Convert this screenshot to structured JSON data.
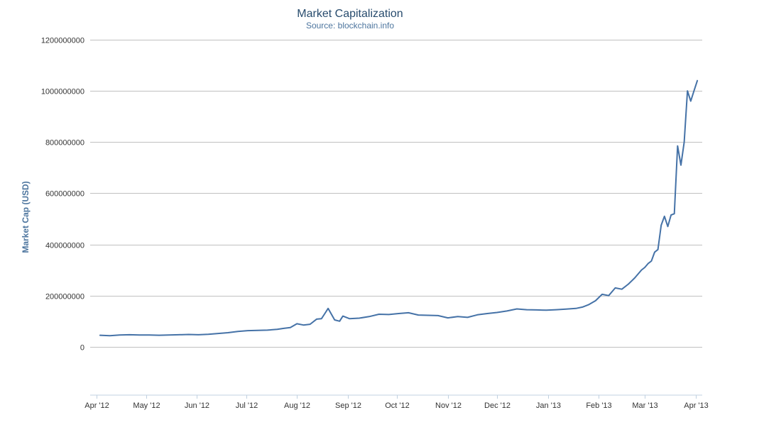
{
  "chart_data": {
    "type": "line",
    "title": "Market Capitalization",
    "subtitle": "Source: blockchain.info",
    "xlabel": "",
    "ylabel": "Market Cap (USD)",
    "ylim": [
      -200000000,
      1200000000
    ],
    "xlim": [
      "2012-03-28",
      "2013-04-05"
    ],
    "grid": true,
    "line_color": "#4572a7",
    "y_ticks": [
      {
        "value": 0,
        "label": "0"
      },
      {
        "value": 200000000,
        "label": "200000000"
      },
      {
        "value": 400000000,
        "label": "400000000"
      },
      {
        "value": 600000000,
        "label": "600000000"
      },
      {
        "value": 800000000,
        "label": "800000000"
      },
      {
        "value": 1000000000,
        "label": "1000000000"
      },
      {
        "value": 1200000000,
        "label": "1200000000"
      }
    ],
    "x_ticks": [
      {
        "date": "2012-04-01",
        "label": "Apr '12"
      },
      {
        "date": "2012-05-01",
        "label": "May '12"
      },
      {
        "date": "2012-06-01",
        "label": "Jun '12"
      },
      {
        "date": "2012-07-01",
        "label": "Jul '12"
      },
      {
        "date": "2012-08-01",
        "label": "Aug '12"
      },
      {
        "date": "2012-09-01",
        "label": "Sep '12"
      },
      {
        "date": "2012-10-01",
        "label": "Oct '12"
      },
      {
        "date": "2012-11-01",
        "label": "Nov '12"
      },
      {
        "date": "2012-12-01",
        "label": "Dec '12"
      },
      {
        "date": "2013-01-01",
        "label": "Jan '13"
      },
      {
        "date": "2013-02-01",
        "label": "Feb '13"
      },
      {
        "date": "2013-03-01",
        "label": "Mar '13"
      },
      {
        "date": "2013-04-01",
        "label": "Apr '13"
      }
    ],
    "series": [
      {
        "name": "",
        "x": [
          "2012-04-03",
          "2012-04-09",
          "2012-04-15",
          "2012-04-21",
          "2012-04-27",
          "2012-05-03",
          "2012-05-09",
          "2012-05-15",
          "2012-05-21",
          "2012-05-27",
          "2012-06-02",
          "2012-06-08",
          "2012-06-14",
          "2012-06-20",
          "2012-06-26",
          "2012-07-02",
          "2012-07-08",
          "2012-07-14",
          "2012-07-20",
          "2012-07-24",
          "2012-07-28",
          "2012-08-01",
          "2012-08-05",
          "2012-08-09",
          "2012-08-13",
          "2012-08-16",
          "2012-08-18",
          "2012-08-20",
          "2012-08-24",
          "2012-08-27",
          "2012-08-29",
          "2012-09-02",
          "2012-09-08",
          "2012-09-14",
          "2012-09-20",
          "2012-09-26",
          "2012-10-02",
          "2012-10-08",
          "2012-10-14",
          "2012-10-20",
          "2012-10-26",
          "2012-11-01",
          "2012-11-07",
          "2012-11-13",
          "2012-11-19",
          "2012-11-25",
          "2012-12-01",
          "2012-12-07",
          "2012-12-13",
          "2012-12-19",
          "2012-12-25",
          "2012-12-31",
          "2013-01-06",
          "2013-01-12",
          "2013-01-18",
          "2013-01-22",
          "2013-01-26",
          "2013-01-30",
          "2013-02-03",
          "2013-02-07",
          "2013-02-11",
          "2013-02-15",
          "2013-02-19",
          "2013-02-23",
          "2013-02-27",
          "2013-03-01",
          "2013-03-03",
          "2013-03-05",
          "2013-03-07",
          "2013-03-09",
          "2013-03-11",
          "2013-03-13",
          "2013-03-15",
          "2013-03-17",
          "2013-03-19",
          "2013-03-21",
          "2013-03-23",
          "2013-03-25",
          "2013-03-27",
          "2013-03-29",
          "2013-03-31",
          "2013-04-02"
        ],
        "y": [
          45000000,
          43000000,
          46000000,
          47000000,
          46000000,
          46000000,
          45000000,
          46000000,
          47000000,
          48000000,
          47000000,
          49000000,
          52000000,
          55000000,
          60000000,
          63000000,
          64000000,
          65000000,
          68000000,
          72000000,
          75000000,
          90000000,
          85000000,
          88000000,
          108000000,
          110000000,
          130000000,
          150000000,
          105000000,
          100000000,
          120000000,
          110000000,
          112000000,
          118000000,
          127000000,
          126000000,
          130000000,
          133000000,
          124000000,
          123000000,
          122000000,
          113000000,
          118000000,
          115000000,
          125000000,
          130000000,
          134000000,
          140000000,
          148000000,
          145000000,
          144000000,
          143000000,
          145000000,
          147000000,
          150000000,
          155000000,
          165000000,
          180000000,
          205000000,
          200000000,
          230000000,
          225000000,
          245000000,
          270000000,
          300000000,
          310000000,
          325000000,
          335000000,
          370000000,
          380000000,
          475000000,
          510000000,
          470000000,
          515000000,
          520000000,
          785000000,
          710000000,
          800000000,
          1000000000,
          960000000,
          1000000000,
          1040000000
        ]
      }
    ]
  }
}
